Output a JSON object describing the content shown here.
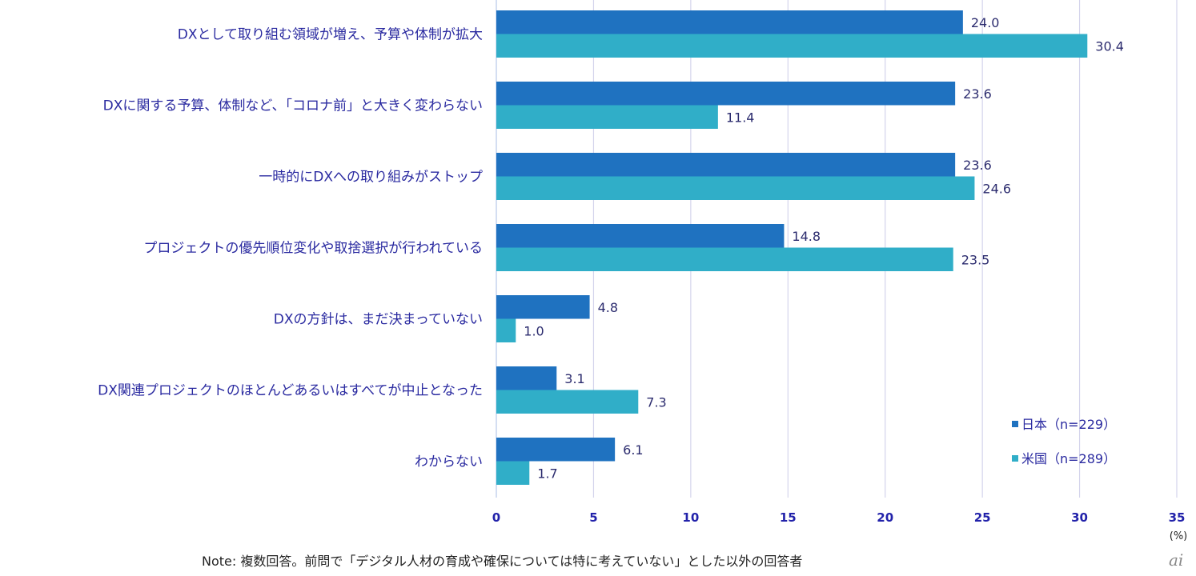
{
  "chart_data": {
    "type": "bar",
    "orientation": "horizontal",
    "title": "",
    "xlabel": "",
    "ylabel": "",
    "unit": "(%)",
    "xlim": [
      0,
      35
    ],
    "xticks": [
      0,
      5,
      10,
      15,
      20,
      25,
      30,
      35
    ],
    "grid": true,
    "legend_position": "bottom-right",
    "categories": [
      "DXとして取り組む領域が増え、予算や体制が拡大",
      "DXに関する予算、体制など、「コロナ前」と大きく変わらない",
      "一時的にDXへの取り組みがストップ",
      "プロジェクトの優先順位変化や取捨選択が行われている",
      "DXの方針は、まだ決まっていない",
      "DX関連プロジェクトのほとんどあるいはすべてが中止となった",
      "わからない"
    ],
    "series": [
      {
        "name": "日本（n=229）",
        "color": "#1f72c0",
        "values": [
          24.0,
          23.6,
          23.6,
          14.8,
          4.8,
          3.1,
          6.1
        ]
      },
      {
        "name": "米国（n=289）",
        "color": "#30aec8",
        "values": [
          30.4,
          11.4,
          24.6,
          23.5,
          1.0,
          7.3,
          1.7
        ]
      }
    ]
  },
  "note": "Note: 複数回答。前問で「デジタル人材の育成や確保については特に考えていない」とした以外の回答者",
  "logo_text": "ai"
}
